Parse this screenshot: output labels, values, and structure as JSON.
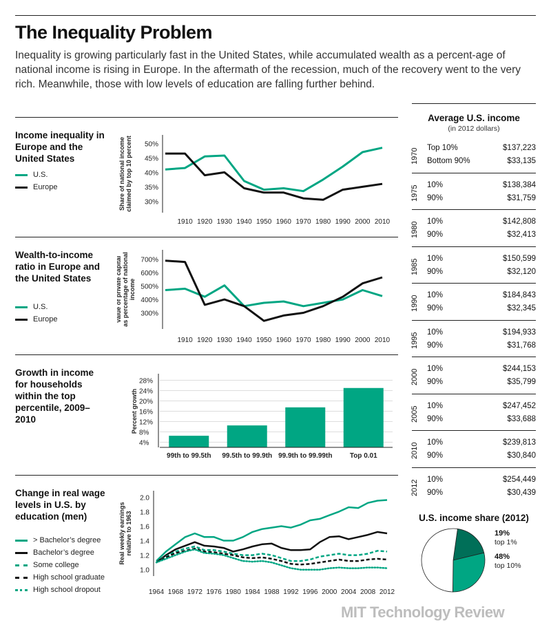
{
  "header": {
    "title": "The Inequality Problem",
    "subtitle": "Inequality is growing particularly fast in the United States, while accumulated wealth as a percent-age of national income is rising in Europe. In the aftermath of the recession, much of the recovery went to the very rich. Meanwhile, those with low levels of education are falling further behind."
  },
  "colors": {
    "us": "#00a683",
    "europe": "#111111",
    "dark_green": "#006f58"
  },
  "panels": {
    "p1": {
      "title": "Income inequality in Europe and the United States",
      "legend": [
        "U.S.",
        "Europe"
      ]
    },
    "p2": {
      "title": "Wealth-to-income ratio in Europe and the United States",
      "legend": [
        "U.S.",
        "Europe"
      ]
    },
    "p3": {
      "title": "Growth in income for households within the top percentile, 2009–2010"
    },
    "p4": {
      "title": "Change in real wage levels in U.S. by education (men)",
      "legend": [
        "> Bachelor’s degree",
        "Bachelor’s degree",
        "Some college",
        "High school graduate",
        "High school dropout"
      ]
    }
  },
  "chart_data": [
    {
      "type": "line",
      "title": "Income inequality in Europe and the United States",
      "ylabel": "Share of national income claimed by top 10 percent",
      "x": [
        1900,
        1910,
        1920,
        1930,
        1940,
        1950,
        1960,
        1970,
        1980,
        1990,
        2000,
        2010
      ],
      "xticks": [
        "1910",
        "1920",
        "1930",
        "1940",
        "1950",
        "1960",
        "1970",
        "1980",
        "1990",
        "2000",
        "2010"
      ],
      "yticks": [
        "50%",
        "45%",
        "40%",
        "35%",
        "30%"
      ],
      "ylim": [
        27,
        52
      ],
      "series": [
        {
          "name": "U.S.",
          "values": [
            41.0,
            41.5,
            45.5,
            45.8,
            37.0,
            34.0,
            34.5,
            33.5,
            37.5,
            42.0,
            47.0,
            48.5
          ]
        },
        {
          "name": "Europe",
          "values": [
            46.5,
            46.5,
            39.0,
            40.0,
            34.5,
            33.0,
            33.0,
            31.0,
            30.5,
            34.0,
            35.0,
            36.0
          ]
        }
      ]
    },
    {
      "type": "line",
      "title": "Wealth-to-income ratio in Europe and the United States",
      "ylabel": "Value of private capital as percentage of national income",
      "x": [
        1900,
        1910,
        1920,
        1930,
        1940,
        1950,
        1960,
        1970,
        1980,
        1990,
        2000,
        2010
      ],
      "xticks": [
        "1910",
        "1920",
        "1930",
        "1940",
        "1950",
        "1960",
        "1970",
        "1980",
        "1990",
        "2000",
        "2010"
      ],
      "yticks": [
        "700%",
        "600%",
        "500%",
        "400%",
        "300%"
      ],
      "ylim": [
        200,
        750
      ],
      "series": [
        {
          "name": "U.S.",
          "values": [
            470,
            480,
            420,
            505,
            350,
            375,
            385,
            350,
            375,
            400,
            470,
            425
          ]
        },
        {
          "name": "Europe",
          "values": [
            690,
            680,
            360,
            400,
            350,
            240,
            280,
            300,
            350,
            420,
            520,
            565
          ]
        }
      ]
    },
    {
      "type": "bar",
      "title": "Growth in income for households within the top percentile, 2009–2010",
      "ylabel": "Percent growth",
      "categories": [
        "99th to 99.5th",
        "99.5th to 99.9th",
        "99.9th to 99.99th",
        "Top 0.01"
      ],
      "values": [
        6.5,
        10.5,
        17.5,
        25
      ],
      "yticks": [
        "28%",
        "24%",
        "20%",
        "16%",
        "12%",
        "8%",
        "4%"
      ],
      "ylim": [
        2,
        30
      ]
    },
    {
      "type": "line",
      "title": "Change in real wage levels in U.S. by education (men)",
      "ylabel": "Real weekly earnings relative to 1963",
      "x": [
        1964,
        1966,
        1968,
        1970,
        1972,
        1974,
        1976,
        1978,
        1980,
        1982,
        1984,
        1986,
        1988,
        1990,
        1992,
        1994,
        1996,
        1998,
        2000,
        2002,
        2004,
        2006,
        2008,
        2010,
        2012
      ],
      "xticks": [
        "1964",
        "1968",
        "1972",
        "1976",
        "1980",
        "1984",
        "1988",
        "1992",
        "1996",
        "2000",
        "2004",
        "2008",
        "2012"
      ],
      "yticks": [
        "2.0",
        "1.8",
        "1.6",
        "1.4",
        "1.2",
        "1.0"
      ],
      "ylim": [
        0.95,
        2.05
      ],
      "series": [
        {
          "name": "> Bachelor’s degree",
          "values": [
            1.12,
            1.25,
            1.35,
            1.45,
            1.5,
            1.45,
            1.45,
            1.4,
            1.4,
            1.45,
            1.52,
            1.56,
            1.58,
            1.6,
            1.58,
            1.62,
            1.68,
            1.7,
            1.75,
            1.8,
            1.86,
            1.85,
            1.92,
            1.95,
            1.96
          ]
        },
        {
          "name": "Bachelor’s degree",
          "values": [
            1.1,
            1.2,
            1.28,
            1.33,
            1.38,
            1.33,
            1.32,
            1.3,
            1.25,
            1.28,
            1.32,
            1.35,
            1.36,
            1.3,
            1.27,
            1.27,
            1.28,
            1.38,
            1.45,
            1.46,
            1.42,
            1.45,
            1.48,
            1.52,
            1.5
          ]
        },
        {
          "name": "Some college",
          "values": [
            1.1,
            1.18,
            1.25,
            1.29,
            1.32,
            1.27,
            1.27,
            1.25,
            1.22,
            1.2,
            1.2,
            1.22,
            1.2,
            1.16,
            1.12,
            1.12,
            1.14,
            1.18,
            1.2,
            1.22,
            1.2,
            1.2,
            1.22,
            1.26,
            1.25
          ]
        },
        {
          "name": "High school graduate",
          "values": [
            1.1,
            1.17,
            1.23,
            1.26,
            1.29,
            1.25,
            1.24,
            1.22,
            1.2,
            1.17,
            1.16,
            1.17,
            1.15,
            1.12,
            1.08,
            1.07,
            1.08,
            1.1,
            1.12,
            1.14,
            1.12,
            1.12,
            1.14,
            1.15,
            1.14
          ]
        },
        {
          "name": "High school dropout",
          "values": [
            1.1,
            1.15,
            1.2,
            1.25,
            1.28,
            1.23,
            1.22,
            1.2,
            1.16,
            1.12,
            1.11,
            1.12,
            1.1,
            1.06,
            1.02,
            1.0,
            1.0,
            1.0,
            1.02,
            1.03,
            1.02,
            1.02,
            1.03,
            1.03,
            1.02
          ]
        }
      ]
    },
    {
      "type": "pie",
      "title": "U.S. income share (2012)",
      "categories": [
        "top 1%",
        "top 10%",
        "remainder"
      ],
      "values": [
        19,
        29,
        52
      ],
      "labels": [
        {
          "pct": "19%",
          "text": "top 1%"
        },
        {
          "pct": "48%",
          "text": "top 10%"
        }
      ]
    }
  ],
  "side": {
    "title": "Average U.S. income",
    "subtitle": "(in 2012 dollars)",
    "rows": [
      {
        "year": "1970",
        "top_label": "Top 10%",
        "top": "$137,223",
        "bottom_label": "Bottom 90%",
        "bottom": "$33,135"
      },
      {
        "year": "1975",
        "top_label": "10%",
        "top": "$138,384",
        "bottom_label": "90%",
        "bottom": "$31,759"
      },
      {
        "year": "1980",
        "top_label": "10%",
        "top": "$142,808",
        "bottom_label": "90%",
        "bottom": "$32,413"
      },
      {
        "year": "1985",
        "top_label": "10%",
        "top": "$150,599",
        "bottom_label": "90%",
        "bottom": "$32,120"
      },
      {
        "year": "1990",
        "top_label": "10%",
        "top": "$184,843",
        "bottom_label": "90%",
        "bottom": "$32,345"
      },
      {
        "year": "1995",
        "top_label": "10%",
        "top": "$194,933",
        "bottom_label": "90%",
        "bottom": "$31,768"
      },
      {
        "year": "2000",
        "top_label": "10%",
        "top": "$244,153",
        "bottom_label": "90%",
        "bottom": "$35,799"
      },
      {
        "year": "2005",
        "top_label": "10%",
        "top": "$247,452",
        "bottom_label": "90%",
        "bottom": "$33,688"
      },
      {
        "year": "2010",
        "top_label": "10%",
        "top": "$239,813",
        "bottom_label": "90%",
        "bottom": "$30,840"
      },
      {
        "year": "2012",
        "top_label": "10%",
        "top": "$254,449",
        "bottom_label": "90%",
        "bottom": "$30,439"
      }
    ]
  },
  "footer": {
    "brand": "MIT Technology Review"
  }
}
